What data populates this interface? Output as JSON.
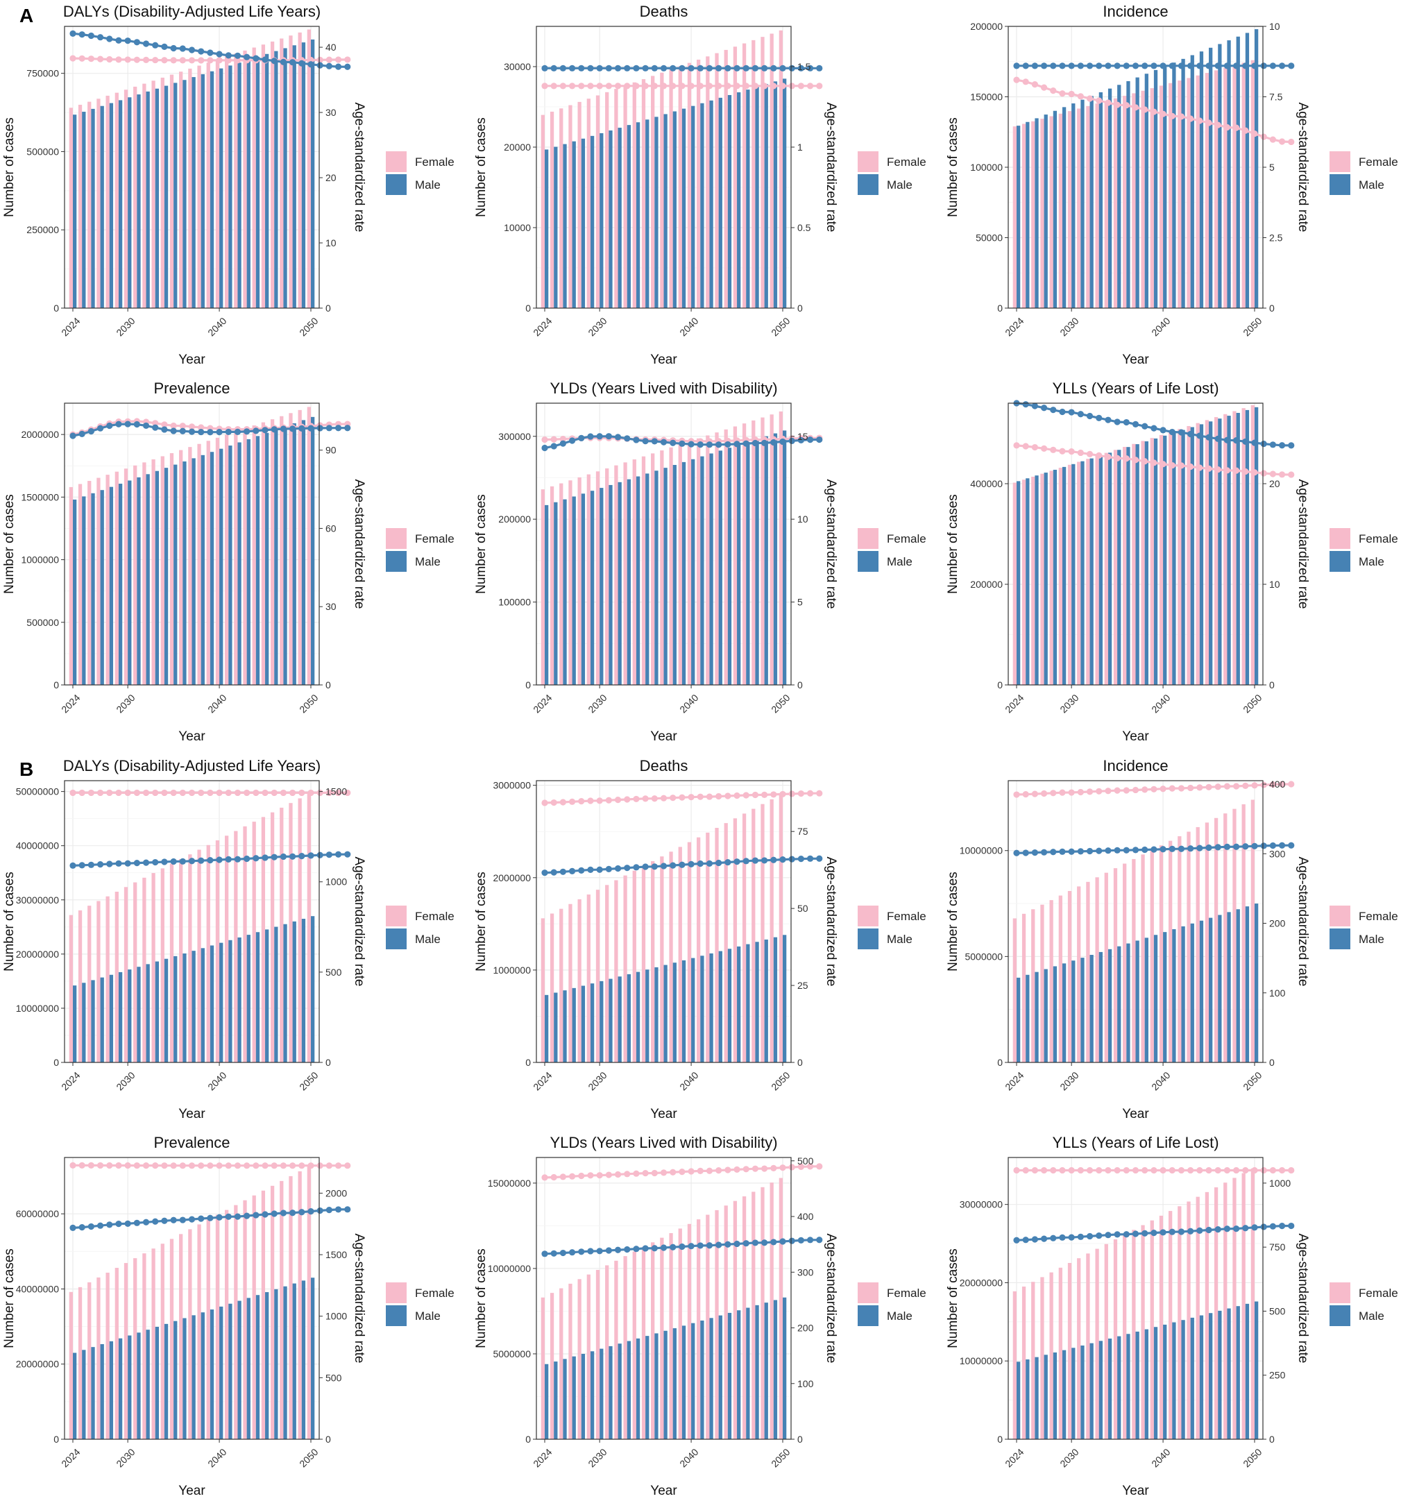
{
  "colors": {
    "female": "#F7BBCB",
    "male": "#4682B4",
    "grid": "#EBEBEB",
    "frame": "#333333"
  },
  "legend": {
    "female": "Female",
    "male": "Male"
  },
  "sections": [
    "A",
    "B"
  ],
  "chart_data": [
    {
      "section": "A",
      "type": "bar+line",
      "title": "DALYs (Disability-Adjusted Life Years)",
      "xlabel": "Year",
      "ylabel": "Number of cases",
      "y2label": "Age-standardized rate",
      "years": [
        2024,
        2050
      ],
      "xticks": [
        2024,
        2030,
        2040,
        2050
      ],
      "ylim": [
        0,
        900000
      ],
      "yticks": [
        0,
        250000,
        500000,
        750000
      ],
      "y2lim": [
        0,
        43.2
      ],
      "y2ticks": [
        0,
        10,
        20,
        30,
        40
      ],
      "female_cases": [
        640000,
        890000
      ],
      "male_cases": [
        618000,
        858000
      ],
      "female_rate": [
        38.3,
        38.1,
        38.0,
        38.0,
        38.0,
        38.1
      ],
      "male_rate": [
        42.1,
        41.0,
        39.8,
        38.7,
        37.7,
        37.0
      ]
    },
    {
      "section": "A",
      "type": "bar+line",
      "title": "Deaths",
      "xlabel": "Year",
      "ylabel": "Number of cases",
      "y2label": "Age-standardized rate",
      "years": [
        2024,
        2050
      ],
      "xticks": [
        2024,
        2030,
        2040,
        2050
      ],
      "ylim": [
        0,
        35000
      ],
      "yticks": [
        0,
        10000,
        20000,
        30000
      ],
      "y2lim": [
        0,
        1.75
      ],
      "y2ticks": [
        0.0,
        0.5,
        1.0,
        1.5
      ],
      "female_cases": [
        24000,
        34500
      ],
      "male_cases": [
        19700,
        28500
      ],
      "female_rate": [
        1.38,
        1.38,
        1.38,
        1.38,
        1.38,
        1.38
      ],
      "male_rate": [
        1.49,
        1.49,
        1.49,
        1.49,
        1.49,
        1.49
      ]
    },
    {
      "section": "A",
      "type": "bar+line",
      "title": "Incidence",
      "xlabel": "Year",
      "ylabel": "Number of cases",
      "y2label": "Age-standardized rate",
      "years": [
        2024,
        2050
      ],
      "xticks": [
        2024,
        2030,
        2040,
        2050
      ],
      "ylim": [
        0,
        200000
      ],
      "yticks": [
        0,
        50000,
        100000,
        150000,
        200000
      ],
      "y2lim": [
        0,
        10
      ],
      "y2ticks": [
        0.0,
        2.5,
        5.0,
        7.5,
        10.0
      ],
      "female_cases": [
        129000,
        176000
      ],
      "male_cases": [
        129500,
        198000
      ],
      "female_rate": [
        8.1,
        7.6,
        7.2,
        6.8,
        6.4,
        5.9
      ],
      "male_rate": [
        8.6,
        8.6,
        8.6,
        8.6,
        8.6,
        8.6
      ]
    },
    {
      "section": "A",
      "type": "bar+line",
      "title": "Prevalence",
      "xlabel": "Year",
      "ylabel": "Number of cases",
      "y2label": "Age-standardized rate",
      "years": [
        2024,
        2050
      ],
      "xticks": [
        2024,
        2030,
        2040,
        2050
      ],
      "ylim": [
        0,
        2250000
      ],
      "yticks": [
        0,
        500000,
        1000000,
        1500000,
        2000000
      ],
      "y2lim": [
        0,
        108
      ],
      "y2ticks": [
        0,
        30,
        60,
        90
      ],
      "female_cases": [
        1580000,
        2220000
      ],
      "male_cases": [
        1480000,
        2140000
      ],
      "female_rate": [
        96.0,
        101.0,
        99.3,
        98.0,
        98.7,
        100.0
      ],
      "male_rate": [
        95.5,
        100.0,
        97.3,
        97.0,
        98.2,
        98.5
      ]
    },
    {
      "section": "A",
      "type": "bar+line",
      "title": "YLDs (Years Lived with Disability)",
      "xlabel": "Year",
      "ylabel": "Number of cases",
      "y2label": "Age-standardized rate",
      "years": [
        2024,
        2050
      ],
      "xticks": [
        2024,
        2030,
        2040,
        2050
      ],
      "ylim": [
        0,
        340000
      ],
      "yticks": [
        0,
        100000,
        200000,
        300000
      ],
      "y2lim": [
        0,
        17
      ],
      "y2ticks": [
        0,
        5,
        10,
        15
      ],
      "female_cases": [
        236000,
        330000
      ],
      "male_cases": [
        217000,
        307000
      ],
      "female_rate": [
        14.8,
        14.9,
        14.8,
        14.7,
        14.8,
        14.9
      ],
      "male_rate": [
        14.3,
        15.0,
        14.7,
        14.5,
        14.6,
        14.8
      ]
    },
    {
      "section": "A",
      "type": "bar+line",
      "title": "YLLs (Years of Life Lost)",
      "xlabel": "Year",
      "ylabel": "Number of cases",
      "y2label": "Age-standardized rate",
      "years": [
        2024,
        2050
      ],
      "xticks": [
        2024,
        2030,
        2040,
        2050
      ],
      "ylim": [
        0,
        560000
      ],
      "yticks": [
        0,
        200000,
        400000
      ],
      "y2lim": [
        0,
        28
      ],
      "y2ticks": [
        0,
        10,
        20
      ],
      "female_cases": [
        402000,
        556000
      ],
      "male_cases": [
        405000,
        552000
      ],
      "female_rate": [
        23.8,
        23.2,
        22.5,
        21.8,
        21.3,
        20.9
      ],
      "male_rate": [
        28.0,
        27.1,
        26.1,
        25.1,
        24.3,
        23.8
      ]
    },
    {
      "section": "B",
      "type": "bar+line",
      "title": "DALYs (Disability-Adjusted Life Years)",
      "xlabel": "Year",
      "ylabel": "Number of cases",
      "y2label": "Age-standardized rate",
      "years": [
        2024,
        2050
      ],
      "xticks": [
        2024,
        2030,
        2040,
        2050
      ],
      "ylim": [
        0,
        52000000
      ],
      "yticks": [
        0,
        10000000,
        20000000,
        30000000,
        40000000,
        50000000
      ],
      "y2lim": [
        0,
        1560
      ],
      "y2ticks": [
        0,
        500,
        1000,
        1500
      ],
      "female_cases": [
        27200000,
        49600000
      ],
      "male_cases": [
        14200000,
        27000000
      ],
      "female_rate": [
        1493,
        1493,
        1493,
        1493,
        1493,
        1493
      ],
      "male_rate": [
        1090,
        1102,
        1113,
        1125,
        1140,
        1152
      ]
    },
    {
      "section": "B",
      "type": "bar+line",
      "title": "Deaths",
      "xlabel": "Year",
      "ylabel": "Number of cases",
      "y2label": "Age-standardized rate",
      "years": [
        2024,
        2050
      ],
      "xticks": [
        2024,
        2030,
        2040,
        2050
      ],
      "ylim": [
        0,
        3050000
      ],
      "yticks": [
        0,
        1000000,
        2000000,
        3000000
      ],
      "y2lim": [
        0,
        91.5
      ],
      "y2ticks": [
        0,
        25,
        50,
        75
      ],
      "female_cases": [
        1560000,
        2900000
      ],
      "male_cases": [
        730000,
        1380000
      ],
      "female_rate": [
        84.3,
        85.0,
        85.7,
        86.3,
        86.9,
        87.4
      ],
      "male_rate": [
        61.6,
        62.6,
        63.6,
        64.6,
        65.6,
        66.2
      ]
    },
    {
      "section": "B",
      "type": "bar+line",
      "title": "Incidence",
      "xlabel": "Year",
      "ylabel": "Number of cases",
      "y2label": "Age-standardized rate",
      "years": [
        2024,
        2050
      ],
      "xticks": [
        2024,
        2030,
        2040,
        2050
      ],
      "ylim": [
        0,
        13300000
      ],
      "yticks": [
        0,
        5000000,
        10000000
      ],
      "y2lim": [
        0,
        405
      ],
      "y2ticks": [
        0,
        100,
        200,
        300,
        400
      ],
      "female_cases": [
        6800000,
        12400000
      ],
      "male_cases": [
        4000000,
        7500000
      ],
      "female_rate": [
        385,
        388,
        391,
        394,
        397,
        400
      ],
      "male_rate": [
        301,
        303,
        305,
        307,
        310,
        312
      ]
    },
    {
      "section": "B",
      "type": "bar+line",
      "title": "Prevalence",
      "xlabel": "Year",
      "ylabel": "Number of cases",
      "y2label": "Age-standardized rate",
      "years": [
        2024,
        2050
      ],
      "xticks": [
        2024,
        2030,
        2040,
        2050
      ],
      "ylim": [
        0,
        75000000
      ],
      "yticks": [
        0,
        20000000,
        40000000,
        60000000
      ],
      "y2lim": [
        0,
        2290
      ],
      "y2ticks": [
        0,
        500,
        1000,
        1500,
        2000
      ],
      "female_cases": [
        39200000,
        72600000
      ],
      "male_cases": [
        23000000,
        43000000
      ],
      "female_rate": [
        2226,
        2225,
        2224,
        2224,
        2224,
        2224
      ],
      "male_rate": [
        1718,
        1752,
        1782,
        1810,
        1840,
        1868
      ]
    },
    {
      "section": "B",
      "type": "bar+line",
      "title": "YLDs (Years Lived with Disability)",
      "xlabel": "Year",
      "ylabel": "Number of cases",
      "y2label": "Age-standardized rate",
      "years": [
        2024,
        2050
      ],
      "xticks": [
        2024,
        2030,
        2040,
        2050
      ],
      "ylim": [
        0,
        16500000
      ],
      "yticks": [
        0,
        5000000,
        10000000,
        15000000
      ],
      "y2lim": [
        0,
        506
      ],
      "y2ticks": [
        0,
        100,
        200,
        300,
        400,
        500
      ],
      "female_cases": [
        8300000,
        15300000
      ],
      "male_cases": [
        4400000,
        8300000
      ],
      "female_rate": [
        470,
        474,
        478,
        482,
        486,
        490
      ],
      "male_rate": [
        333,
        338,
        343,
        348,
        353,
        358
      ]
    },
    {
      "section": "B",
      "type": "bar+line",
      "title": "YLLs (Years of Life Lost)",
      "xlabel": "Year",
      "ylabel": "Number of cases",
      "y2label": "Age-standardized rate",
      "years": [
        2024,
        2050
      ],
      "xticks": [
        2024,
        2030,
        2040,
        2050
      ],
      "ylim": [
        0,
        36000000
      ],
      "yticks": [
        0,
        10000000,
        20000000,
        30000000
      ],
      "y2lim": [
        0,
        1100
      ],
      "y2ticks": [
        0,
        250,
        500,
        750,
        1000
      ],
      "female_cases": [
        18900000,
        34600000
      ],
      "male_cases": [
        9900000,
        17600000
      ],
      "female_rate": [
        1050,
        1050,
        1050,
        1050,
        1050,
        1050
      ],
      "male_rate": [
        777,
        788,
        800,
        810,
        822,
        833
      ]
    }
  ]
}
